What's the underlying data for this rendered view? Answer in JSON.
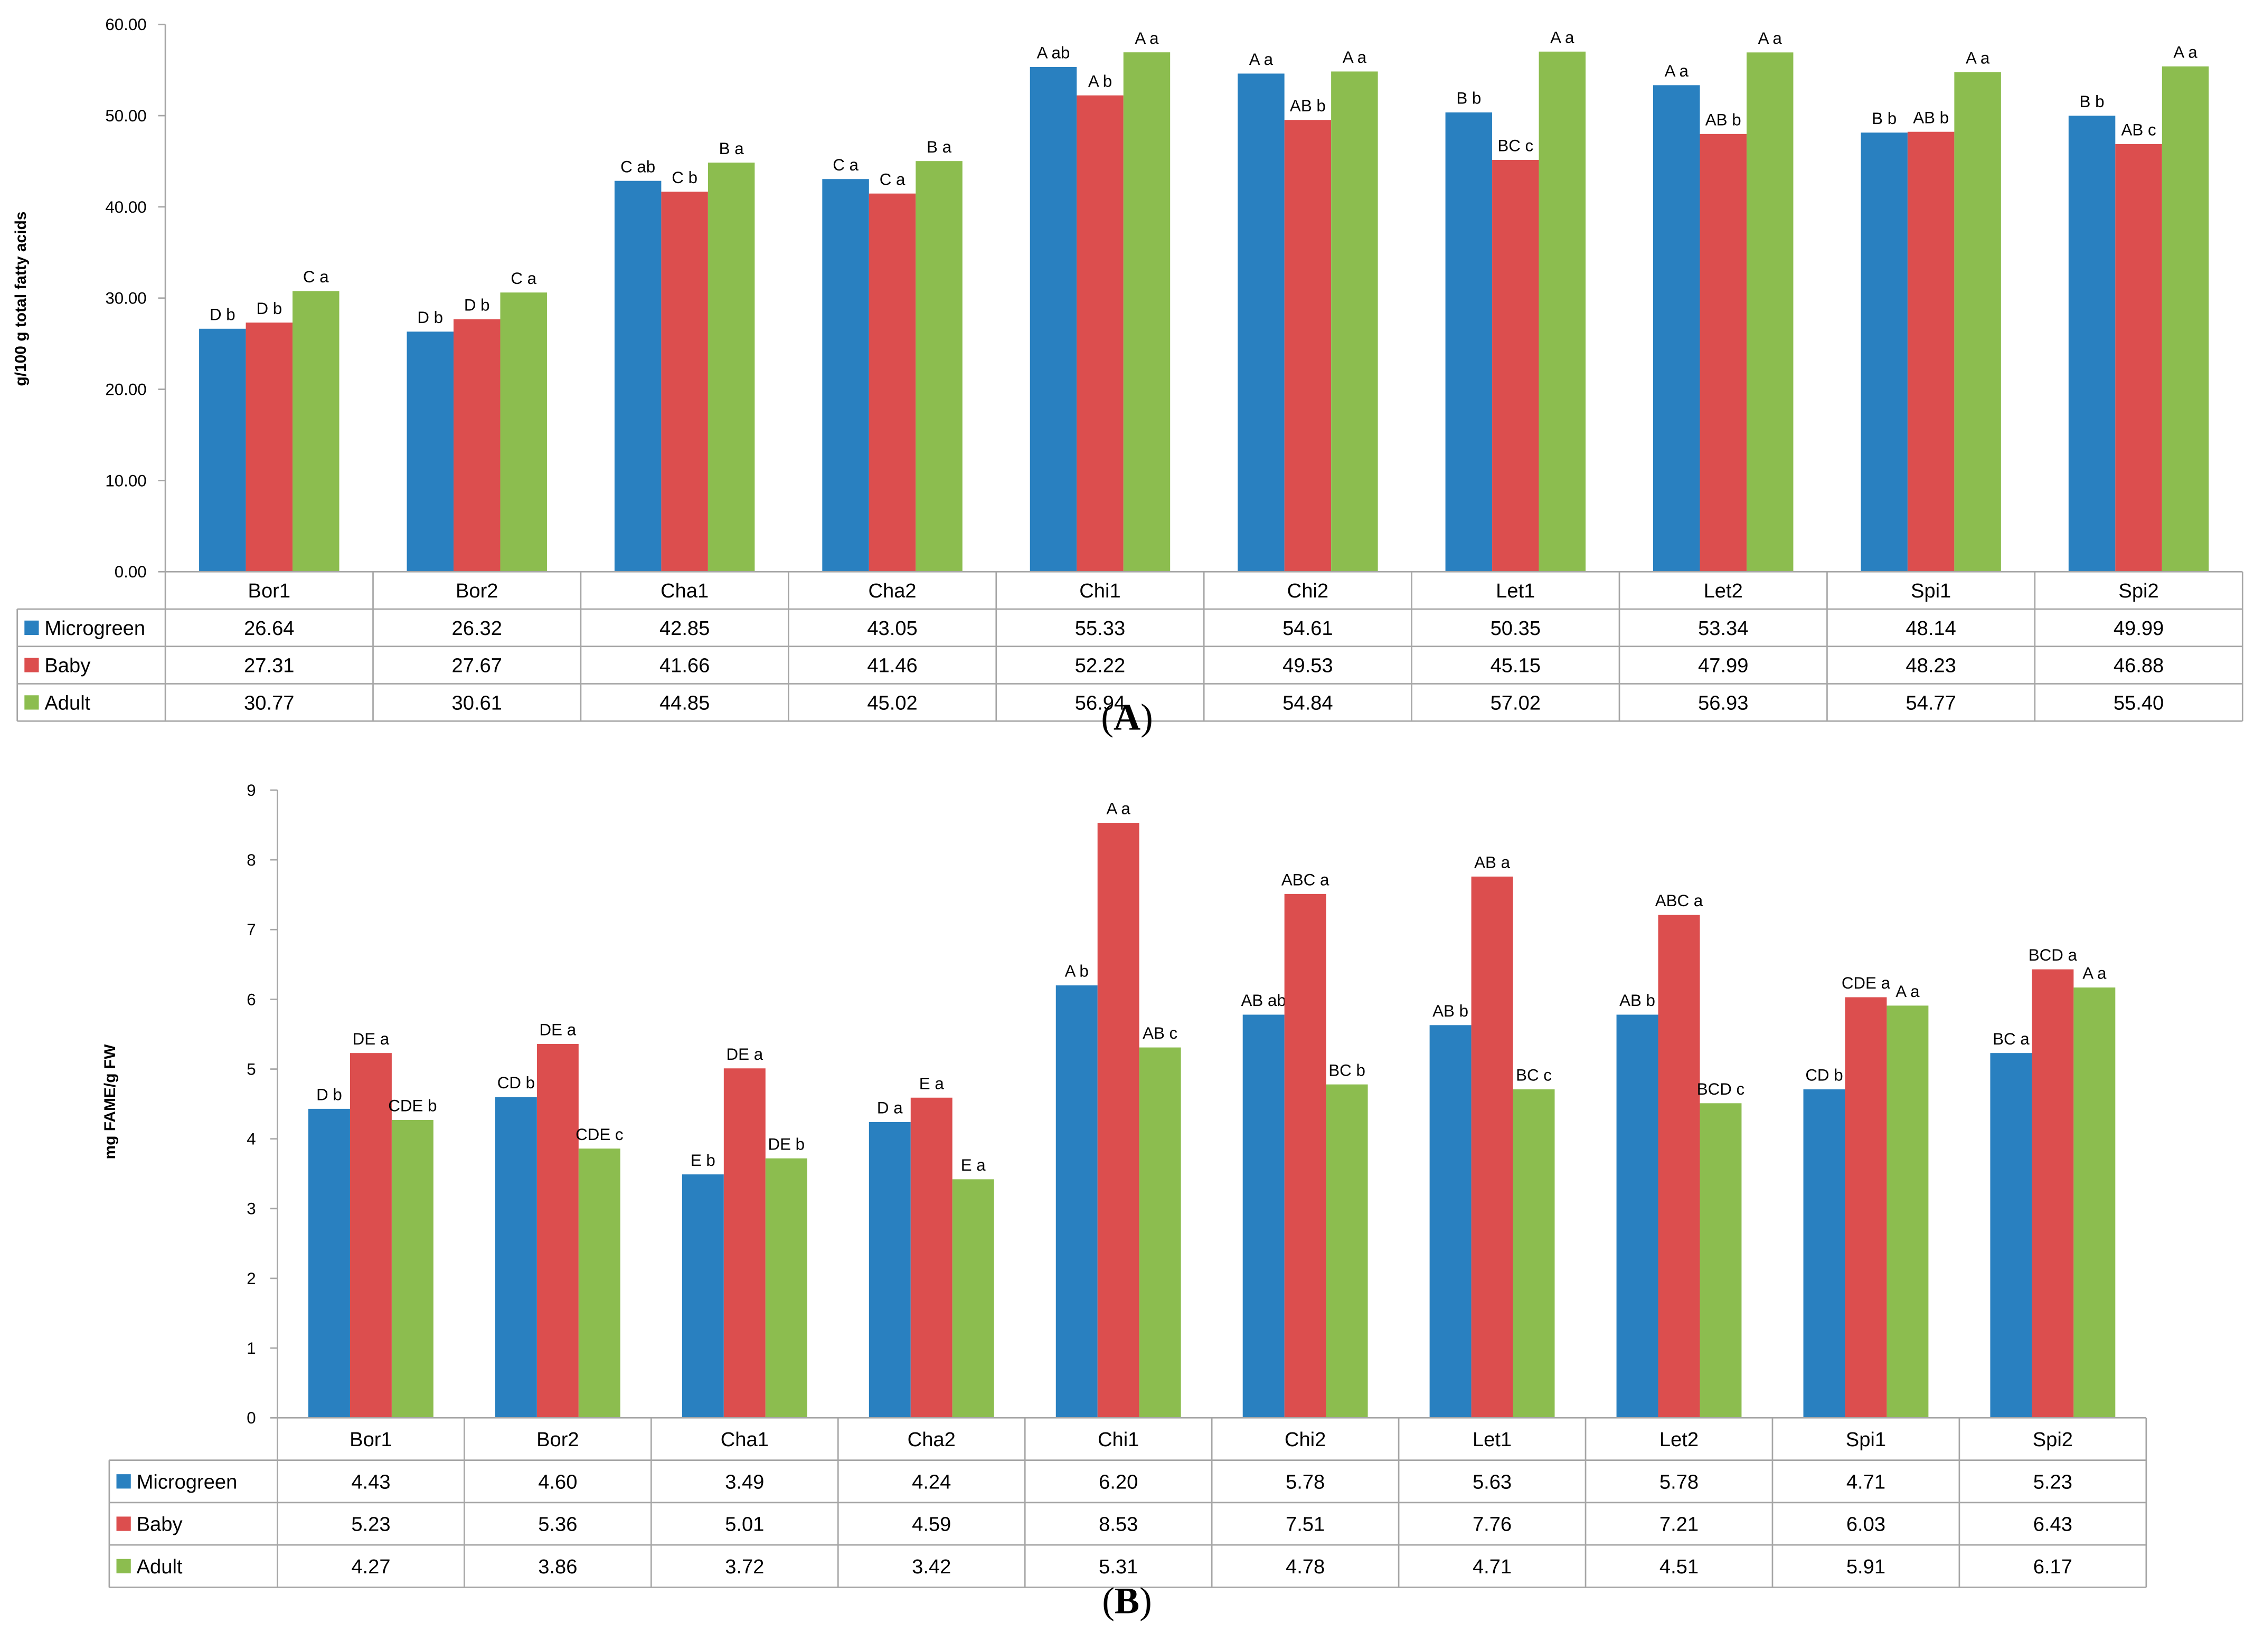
{
  "colors": {
    "microgreen": "#2980c0",
    "baby": "#dc4e4e",
    "adult": "#8cbd4f"
  },
  "chart_data": [
    {
      "type": "bar",
      "panel": "A",
      "caption": [
        "(",
        "A",
        ")"
      ],
      "ylabel": "g/100 g total fatty acids",
      "xlabel": "",
      "ylim": [
        0,
        60
      ],
      "yticks": [
        "0.00",
        "10.00",
        "20.00",
        "30.00",
        "40.00",
        "50.00",
        "60.00"
      ],
      "categories": [
        "Bor1",
        "Bor2",
        "Cha1",
        "Cha2",
        "Chi1",
        "Chi2",
        "Let1",
        "Let2",
        "Spi1",
        "Spi2"
      ],
      "legend": "data-table",
      "series": [
        {
          "name": "Microgreen",
          "color": "#2980c0",
          "values": [
            26.64,
            26.32,
            42.85,
            43.05,
            55.33,
            54.61,
            50.35,
            53.34,
            48.14,
            49.99
          ],
          "labels": [
            "26.64",
            "26.32",
            "42.85",
            "43.05",
            "55.33",
            "54.61",
            "50.35",
            "53.34",
            "48.14",
            "49.99"
          ],
          "annotations": [
            "D b",
            "D b",
            "C ab",
            "C a",
            "A ab",
            "A a",
            "B b",
            "A a",
            "B b",
            "B b"
          ]
        },
        {
          "name": "Baby",
          "color": "#dc4e4e",
          "values": [
            27.31,
            27.67,
            41.66,
            41.46,
            52.22,
            49.53,
            45.15,
            47.99,
            48.23,
            46.88
          ],
          "labels": [
            "27.31",
            "27.67",
            "41.66",
            "41.46",
            "52.22",
            "49.53",
            "45.15",
            "47.99",
            "48.23",
            "46.88"
          ],
          "annotations": [
            "D b",
            "D b",
            "C b",
            "C a",
            "A b",
            "AB b",
            "BC c",
            "AB b",
            "AB b",
            "AB c"
          ]
        },
        {
          "name": "Adult",
          "color": "#8cbd4f",
          "values": [
            30.77,
            30.61,
            44.85,
            45.02,
            56.94,
            54.84,
            57.02,
            56.93,
            54.77,
            55.4
          ],
          "labels": [
            "30.77",
            "30.61",
            "44.85",
            "45.02",
            "56.94",
            "54.84",
            "57.02",
            "56.93",
            "54.77",
            "55.40"
          ],
          "annotations": [
            "C a",
            "C a",
            "B a",
            "B a",
            "A a",
            "A a",
            "A a",
            "A a",
            "A a",
            "A a"
          ]
        }
      ]
    },
    {
      "type": "bar",
      "panel": "B",
      "caption": [
        "(",
        "B",
        ")"
      ],
      "ylabel": "mg FAME/g FW",
      "xlabel": "",
      "ylim": [
        0,
        9
      ],
      "yticks": [
        "0",
        "1",
        "2",
        "3",
        "4",
        "5",
        "6",
        "7",
        "8",
        "9"
      ],
      "categories": [
        "Bor1",
        "Bor2",
        "Cha1",
        "Cha2",
        "Chi1",
        "Chi2",
        "Let1",
        "Let2",
        "Spi1",
        "Spi2"
      ],
      "legend": "data-table",
      "series": [
        {
          "name": "Microgreen",
          "color": "#2980c0",
          "values": [
            4.43,
            4.6,
            3.49,
            4.24,
            6.2,
            5.78,
            5.63,
            5.78,
            4.71,
            5.23
          ],
          "labels": [
            "4.43",
            "4.60",
            "3.49",
            "4.24",
            "6.20",
            "5.78",
            "5.63",
            "5.78",
            "4.71",
            "5.23"
          ],
          "annotations": [
            "D b",
            "CD b",
            "E b",
            "D a",
            "A b",
            "AB ab",
            "AB b",
            "AB b",
            "CD b",
            "BC a"
          ]
        },
        {
          "name": "Baby",
          "color": "#dc4e4e",
          "values": [
            5.23,
            5.36,
            5.01,
            4.59,
            8.53,
            7.51,
            7.76,
            7.21,
            6.03,
            6.43
          ],
          "labels": [
            "5.23",
            "5.36",
            "5.01",
            "4.59",
            "8.53",
            "7.51",
            "7.76",
            "7.21",
            "6.03",
            "6.43"
          ],
          "annotations": [
            "DE a",
            "DE a",
            "DE a",
            "E a",
            "A a",
            "ABC a",
            "AB a",
            "ABC a",
            "CDE a",
            "BCD a"
          ]
        },
        {
          "name": "Adult",
          "color": "#8cbd4f",
          "values": [
            4.27,
            3.86,
            3.72,
            3.42,
            5.31,
            4.78,
            4.71,
            4.51,
            5.91,
            6.17
          ],
          "labels": [
            "4.27",
            "3.86",
            "3.72",
            "3.42",
            "5.31",
            "4.78",
            "4.71",
            "4.51",
            "5.91",
            "6.17"
          ],
          "annotations": [
            "CDE b",
            "CDE c",
            "DE b",
            "E a",
            "AB c",
            "BC b",
            "BC c",
            "BCD c",
            "A a",
            "A a"
          ]
        }
      ]
    }
  ]
}
